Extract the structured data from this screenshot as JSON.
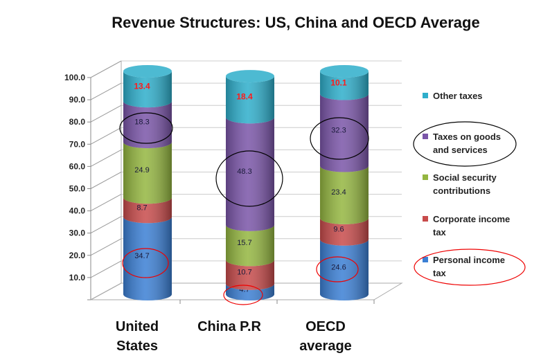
{
  "chart_data": {
    "type": "bar",
    "stacked": true,
    "style": "3d-cylinder",
    "title": "Revenue Structures: US, China and OECD Average",
    "xlabel": "",
    "ylabel": "",
    "ylim": [
      0,
      100
    ],
    "yticks": [
      "10.0",
      "20.0",
      "30.0",
      "40.0",
      "50.0",
      "60.0",
      "70.0",
      "80.0",
      "90.0",
      "100.0"
    ],
    "categories": [
      "United States",
      "China P.R",
      "OECD average"
    ],
    "category_lines": [
      [
        "United",
        "States"
      ],
      [
        "China P.R"
      ],
      [
        "OECD",
        "average"
      ]
    ],
    "series": [
      {
        "name": "Personal income tax",
        "legend_lines": [
          "Personal income",
          "tax"
        ],
        "color": "#3b7fd4",
        "values": [
          34.7,
          4.7,
          24.6
        ]
      },
      {
        "name": "Corporate income tax",
        "legend_lines": [
          "Corporate income",
          "tax"
        ],
        "color": "#c84b4b",
        "values": [
          8.7,
          10.7,
          9.6
        ]
      },
      {
        "name": "Social security contributions",
        "legend_lines": [
          "Social security",
          "contributions"
        ],
        "color": "#94b640",
        "values": [
          24.9,
          15.7,
          23.4
        ]
      },
      {
        "name": "Taxes on goods and services",
        "legend_lines": [
          "Taxes on goods",
          "and services"
        ],
        "color": "#7a55a8",
        "values": [
          18.3,
          48.3,
          32.3
        ]
      },
      {
        "name": "Other taxes",
        "legend_lines": [
          "Other taxes"
        ],
        "color": "#2eaecb",
        "values": [
          13.4,
          18.4,
          10.1
        ]
      }
    ],
    "label_colors": {
      "default": "#1a1a3a",
      "Other taxes": "#ff1a1a"
    },
    "legend_position": "right",
    "grid": true
  }
}
